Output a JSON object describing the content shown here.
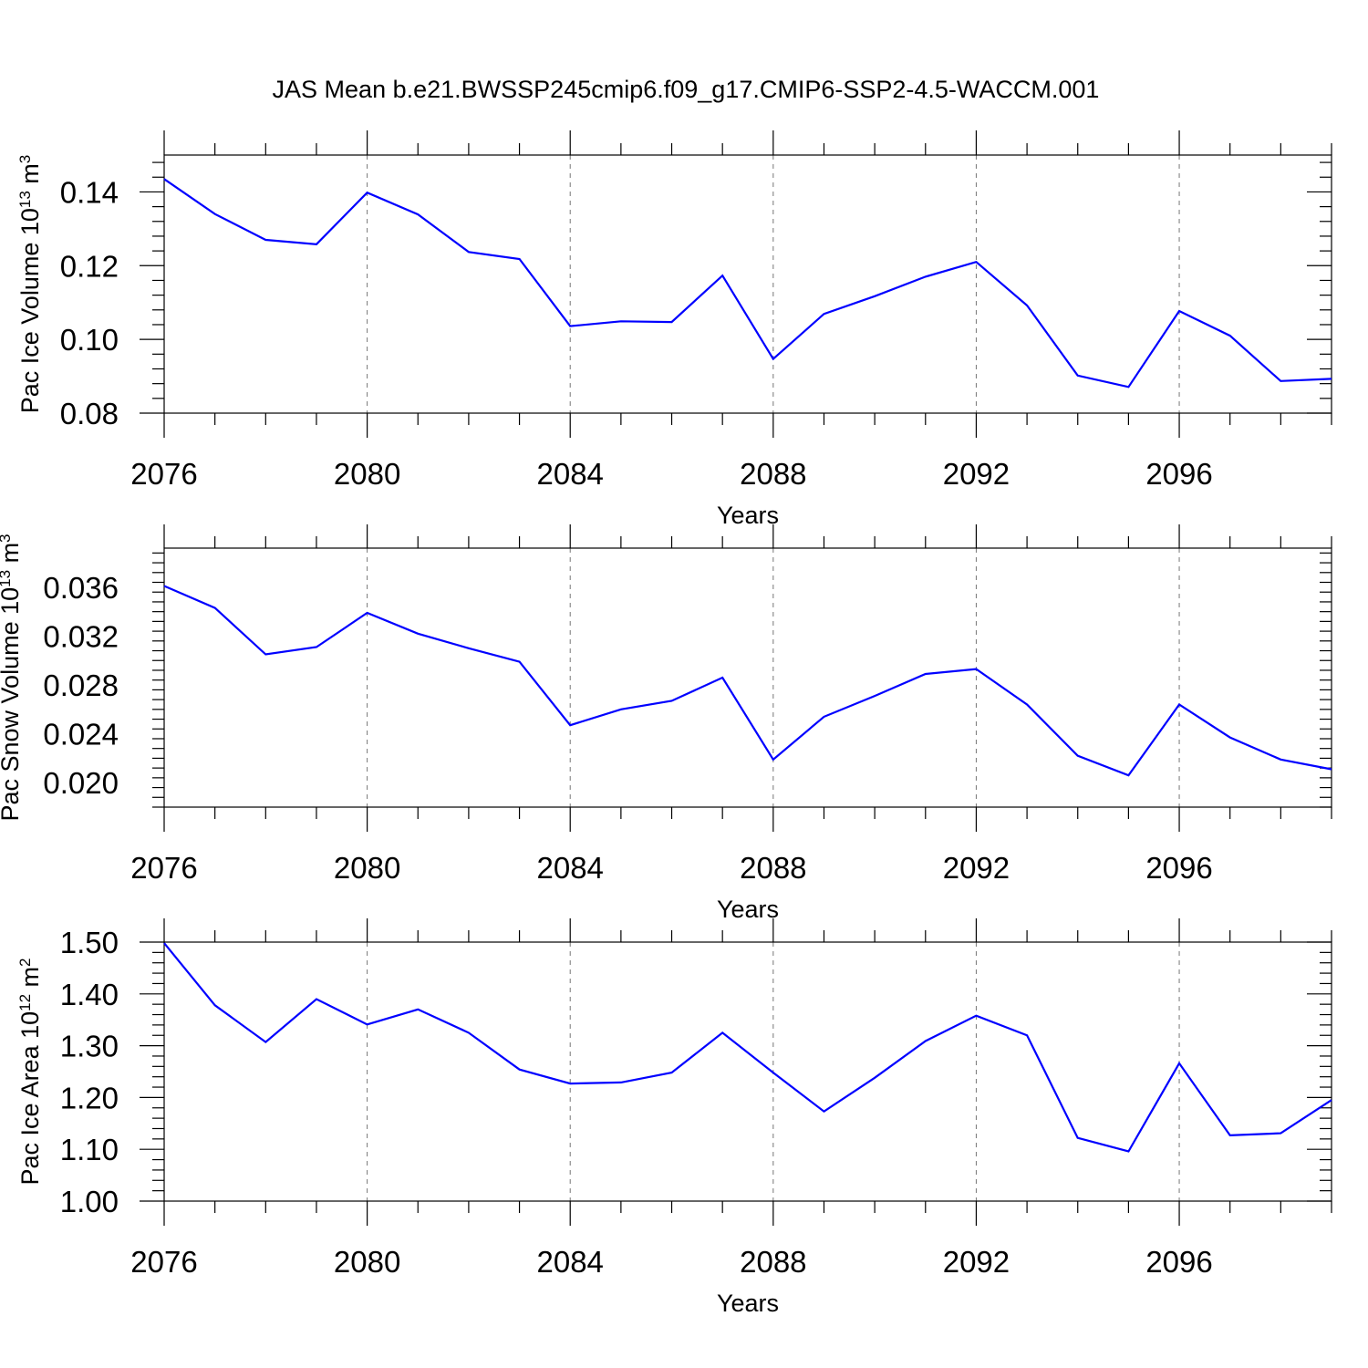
{
  "figure": {
    "title": "JAS Mean b.e21.BWSSP245cmip6.f09_g17.CMIP6-SSP2-4.5-WACCM.001",
    "line_color": "#0000ff",
    "background": "#ffffff"
  },
  "chart_data": [
    {
      "type": "line",
      "ylabel_main": "Pac Ice Volume 10",
      "ylabel_exp": "13",
      "ylabel_unit": " m",
      "ylabel_unit_exp": "3",
      "xlabel": "Years",
      "xlim": [
        2076,
        2099
      ],
      "ylim": [
        0.08,
        0.15
      ],
      "xticks": [
        2076,
        2080,
        2084,
        2088,
        2092,
        2096
      ],
      "xtick_labels": [
        "2076",
        "2080",
        "2084",
        "2088",
        "2092",
        "2096"
      ],
      "yticks": [
        0.08,
        0.1,
        0.12,
        0.14
      ],
      "ytick_labels": [
        "0.08",
        "0.10",
        "0.12",
        "0.14"
      ],
      "grid": "vertical dashed at major x ticks",
      "x": [
        2076,
        2077,
        2078,
        2079,
        2080,
        2081,
        2082,
        2083,
        2084,
        2085,
        2086,
        2087,
        2088,
        2089,
        2090,
        2091,
        2092,
        2093,
        2094,
        2095,
        2096,
        2097,
        2098,
        2099
      ],
      "values": [
        0.1435,
        0.134,
        0.127,
        0.1258,
        0.1398,
        0.1339,
        0.1237,
        0.1218,
        0.1036,
        0.1049,
        0.1047,
        0.1173,
        0.0947,
        0.1069,
        0.1117,
        0.117,
        0.121,
        0.1092,
        0.0902,
        0.0871,
        0.1077,
        0.101,
        0.0887,
        0.0893
      ]
    },
    {
      "type": "line",
      "ylabel_main": "Pac Snow Volume 10",
      "ylabel_exp": "13",
      "ylabel_unit": " m",
      "ylabel_unit_exp": "3",
      "xlabel": "Years",
      "xlim": [
        2076,
        2099
      ],
      "ylim": [
        0.018,
        0.0392
      ],
      "xticks": [
        2076,
        2080,
        2084,
        2088,
        2092,
        2096
      ],
      "xtick_labels": [
        "2076",
        "2080",
        "2084",
        "2088",
        "2092",
        "2096"
      ],
      "yticks": [
        0.02,
        0.024,
        0.028,
        0.032,
        0.036
      ],
      "ytick_labels": [
        "0.020",
        "0.024",
        "0.028",
        "0.032",
        "0.036"
      ],
      "grid": "vertical dashed at major x ticks",
      "x": [
        2076,
        2077,
        2078,
        2079,
        2080,
        2081,
        2082,
        2083,
        2084,
        2085,
        2086,
        2087,
        2088,
        2089,
        2090,
        2091,
        2092,
        2093,
        2094,
        2095,
        2096,
        2097,
        2098,
        2099
      ],
      "values": [
        0.0361,
        0.0343,
        0.0305,
        0.0311,
        0.0339,
        0.0322,
        0.031,
        0.0299,
        0.0247,
        0.026,
        0.0267,
        0.0286,
        0.0219,
        0.0254,
        0.0271,
        0.0289,
        0.0293,
        0.0264,
        0.0222,
        0.0206,
        0.0264,
        0.0237,
        0.0219,
        0.0211
      ]
    },
    {
      "type": "line",
      "ylabel_main": "Pac Ice Area 10",
      "ylabel_exp": "12",
      "ylabel_unit": " m",
      "ylabel_unit_exp": "2",
      "xlabel": "Years",
      "xlim": [
        2076,
        2099
      ],
      "ylim": [
        1.0,
        1.5
      ],
      "xticks": [
        2076,
        2080,
        2084,
        2088,
        2092,
        2096
      ],
      "xtick_labels": [
        "2076",
        "2080",
        "2084",
        "2088",
        "2092",
        "2096"
      ],
      "yticks": [
        1.0,
        1.1,
        1.2,
        1.3,
        1.4,
        1.5
      ],
      "ytick_labels": [
        "1.00",
        "1.10",
        "1.20",
        "1.30",
        "1.40",
        "1.50"
      ],
      "grid": "vertical dashed at major x ticks",
      "x": [
        2076,
        2077,
        2078,
        2079,
        2080,
        2081,
        2082,
        2083,
        2084,
        2085,
        2086,
        2087,
        2088,
        2089,
        2090,
        2091,
        2092,
        2093,
        2094,
        2095,
        2096,
        2097,
        2098,
        2099
      ],
      "values": [
        1.498,
        1.378,
        1.307,
        1.39,
        1.341,
        1.37,
        1.325,
        1.254,
        1.227,
        1.229,
        1.248,
        1.325,
        1.248,
        1.173,
        1.238,
        1.309,
        1.358,
        1.32,
        1.122,
        1.096,
        1.266,
        1.127,
        1.131,
        1.195
      ]
    }
  ]
}
